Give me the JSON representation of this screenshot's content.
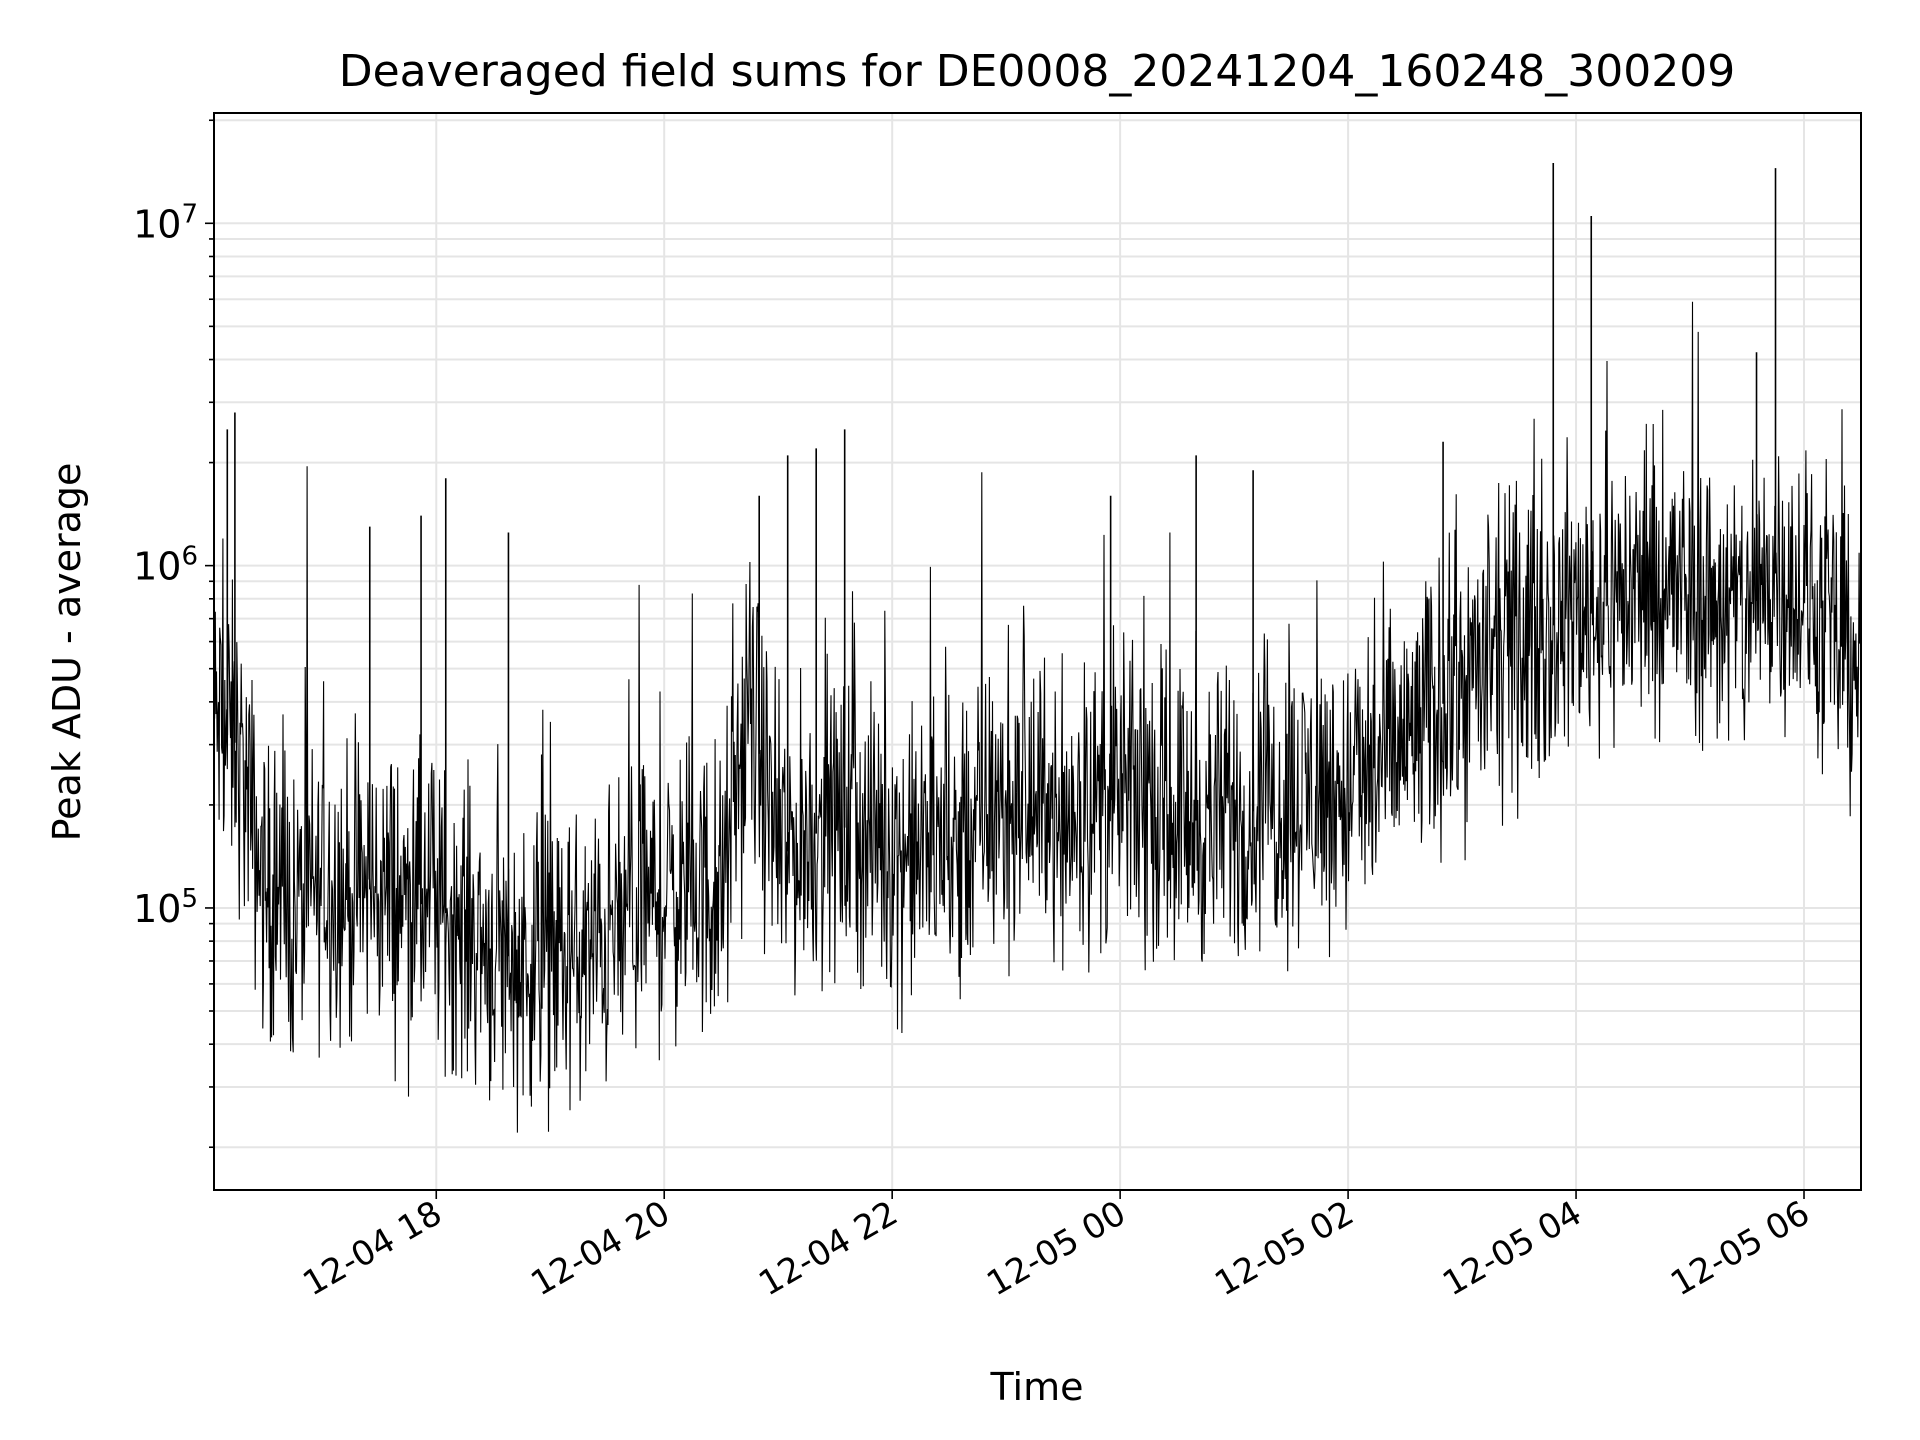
{
  "chart_data": {
    "type": "line",
    "title": "Deaveraged field sums for DE0008_20241204_160248_300209",
    "xlabel": "Time",
    "ylabel": "Peak ADU - average",
    "yscale": "log",
    "grid": true,
    "xlim": [
      "2024-12-04 16:03",
      "2024-12-05 06:30"
    ],
    "ylim": [
      15000,
      21000000
    ],
    "x_ticks": [
      {
        "t": "2024-12-04 18:00",
        "label": "12-04 18"
      },
      {
        "t": "2024-12-04 20:00",
        "label": "12-04 20"
      },
      {
        "t": "2024-12-04 22:00",
        "label": "12-04 22"
      },
      {
        "t": "2024-12-05 00:00",
        "label": "12-05 00"
      },
      {
        "t": "2024-12-05 02:00",
        "label": "12-05 02"
      },
      {
        "t": "2024-12-05 04:00",
        "label": "12-05 04"
      },
      {
        "t": "2024-12-05 06:00",
        "label": "12-05 06"
      }
    ],
    "y_ticks": [
      {
        "value": 100000,
        "base": "10",
        "exp": "5"
      },
      {
        "value": 1000000,
        "base": "10",
        "exp": "6"
      },
      {
        "value": 10000000,
        "base": "10",
        "exp": "7"
      }
    ],
    "line_color": "#000000",
    "grid_color": "#e5e5e5",
    "series": [
      {
        "x": [
          "2024-12-04 16:03",
          "2024-12-04 16:15",
          "2024-12-04 16:30",
          "2024-12-04 16:45",
          "2024-12-04 17:00",
          "2024-12-04 17:15",
          "2024-12-04 17:30",
          "2024-12-04 17:45",
          "2024-12-04 18:00",
          "2024-12-04 18:15",
          "2024-12-04 18:30",
          "2024-12-04 18:45",
          "2024-12-04 19:00",
          "2024-12-04 19:15",
          "2024-12-04 19:30",
          "2024-12-04 19:45",
          "2024-12-04 20:00",
          "2024-12-04 20:15",
          "2024-12-04 20:30",
          "2024-12-04 20:45",
          "2024-12-04 21:00",
          "2024-12-04 21:15",
          "2024-12-04 21:30",
          "2024-12-04 21:45",
          "2024-12-04 22:00",
          "2024-12-04 22:15",
          "2024-12-04 22:30",
          "2024-12-04 22:45",
          "2024-12-04 23:00",
          "2024-12-04 23:15",
          "2024-12-04 23:30",
          "2024-12-04 23:45",
          "2024-12-05 00:00",
          "2024-12-05 00:15",
          "2024-12-05 00:30",
          "2024-12-05 00:45",
          "2024-12-05 01:00",
          "2024-12-05 01:15",
          "2024-12-05 01:30",
          "2024-12-05 01:45",
          "2024-12-05 02:00",
          "2024-12-05 02:15",
          "2024-12-05 02:30",
          "2024-12-05 02:45",
          "2024-12-05 03:00",
          "2024-12-05 03:15",
          "2024-12-05 03:30",
          "2024-12-05 03:45",
          "2024-12-05 04:00",
          "2024-12-05 04:15",
          "2024-12-05 04:30",
          "2024-12-05 04:45",
          "2024-12-05 05:00",
          "2024-12-05 05:15",
          "2024-12-05 05:30",
          "2024-12-05 05:45",
          "2024-12-05 06:00",
          "2024-12-05 06:15",
          "2024-12-05 06:30"
        ],
        "values": [
          350000,
          300000,
          110000,
          95000,
          120000,
          110000,
          115000,
          105000,
          100000,
          90000,
          75000,
          70000,
          72000,
          68000,
          80000,
          95000,
          110000,
          115000,
          105000,
          400000,
          140000,
          160000,
          175000,
          165000,
          150000,
          140000,
          155000,
          175000,
          195000,
          200000,
          190000,
          200000,
          210000,
          205000,
          190000,
          175000,
          185000,
          195000,
          210000,
          220000,
          215000,
          250000,
          300000,
          370000,
          450000,
          520000,
          580000,
          650000,
          750000,
          800000,
          850000,
          870000,
          820000,
          780000,
          700000,
          1000000,
          800000,
          600000,
          550000
        ],
        "spikes": [
          {
            "x": "2024-12-04 16:10",
            "y": 2500000
          },
          {
            "x": "2024-12-04 16:14",
            "y": 2800000
          },
          {
            "x": "2024-12-04 17:25",
            "y": 1300000
          },
          {
            "x": "2024-12-04 17:52",
            "y": 1400000
          },
          {
            "x": "2024-12-04 18:05",
            "y": 1800000
          },
          {
            "x": "2024-12-04 18:38",
            "y": 1250000
          },
          {
            "x": "2024-12-04 20:50",
            "y": 1600000
          },
          {
            "x": "2024-12-04 21:05",
            "y": 2100000
          },
          {
            "x": "2024-12-04 21:20",
            "y": 2200000
          },
          {
            "x": "2024-12-04 21:35",
            "y": 2500000
          },
          {
            "x": "2024-12-04 23:55",
            "y": 1600000
          },
          {
            "x": "2024-12-05 00:40",
            "y": 2100000
          },
          {
            "x": "2024-12-05 01:10",
            "y": 1900000
          },
          {
            "x": "2024-12-05 02:50",
            "y": 2300000
          },
          {
            "x": "2024-12-05 03:48",
            "y": 15000000
          },
          {
            "x": "2024-12-05 04:08",
            "y": 10500000
          },
          {
            "x": "2024-12-05 05:35",
            "y": 4200000
          },
          {
            "x": "2024-12-05 05:45",
            "y": 14500000
          }
        ]
      }
    ]
  }
}
